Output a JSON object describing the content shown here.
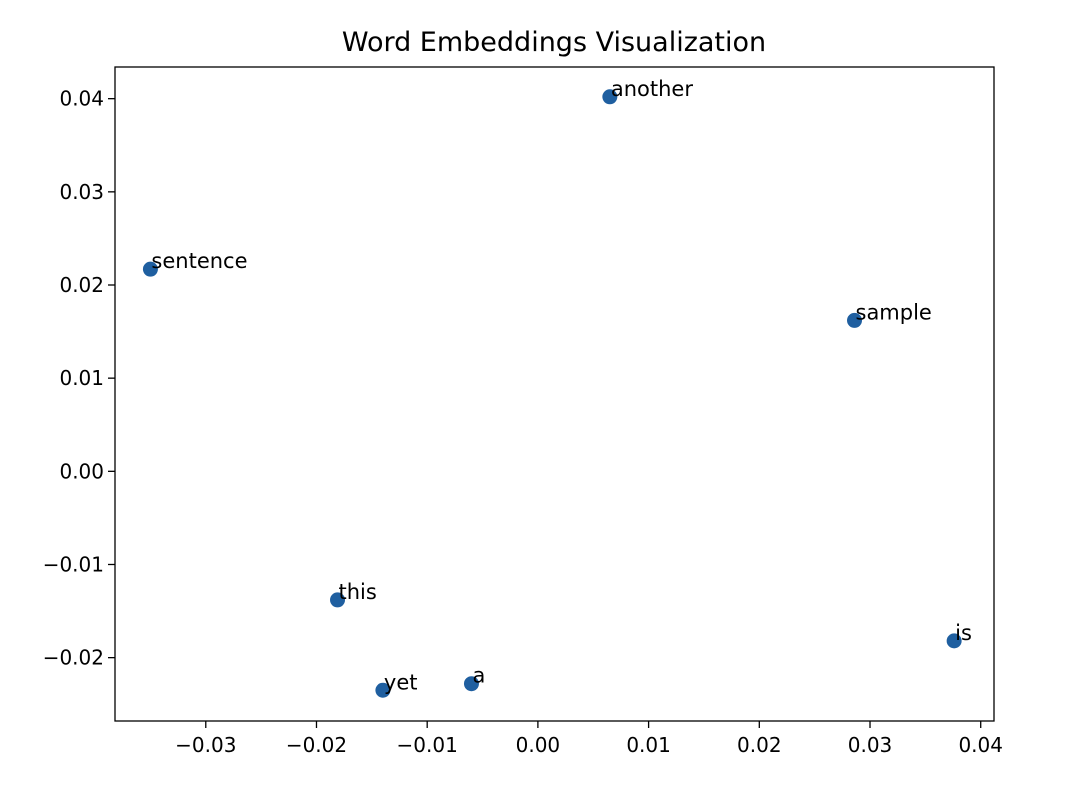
{
  "chart_data": {
    "type": "scatter",
    "title": "Word Embeddings Visualization",
    "xlabel": "",
    "ylabel": "",
    "xlim": [
      -0.0382,
      0.0412
    ],
    "ylim": [
      -0.0268,
      0.0434
    ],
    "xticks": [
      -0.03,
      -0.02,
      -0.01,
      0.0,
      0.01,
      0.02,
      0.03,
      0.04
    ],
    "xtick_labels": [
      "−0.03",
      "−0.02",
      "−0.01",
      "0.00",
      "0.01",
      "0.02",
      "0.03",
      "0.04"
    ],
    "yticks": [
      -0.02,
      -0.01,
      0.0,
      0.01,
      0.02,
      0.03,
      0.04
    ],
    "ytick_labels": [
      "−0.02",
      "−0.01",
      "0.00",
      "0.01",
      "0.02",
      "0.03",
      "0.04"
    ],
    "grid": false,
    "marker_color": "#1f5fa0",
    "points": [
      {
        "label": "another",
        "x": 0.0065,
        "y": 0.0402
      },
      {
        "label": "sentence",
        "x": -0.035,
        "y": 0.0217
      },
      {
        "label": "sample",
        "x": 0.0286,
        "y": 0.0162
      },
      {
        "label": "this",
        "x": -0.0181,
        "y": -0.0138
      },
      {
        "label": "is",
        "x": 0.0376,
        "y": -0.0182
      },
      {
        "label": "a",
        "x": -0.006,
        "y": -0.0228
      },
      {
        "label": "yet",
        "x": -0.014,
        "y": -0.0235
      }
    ]
  }
}
